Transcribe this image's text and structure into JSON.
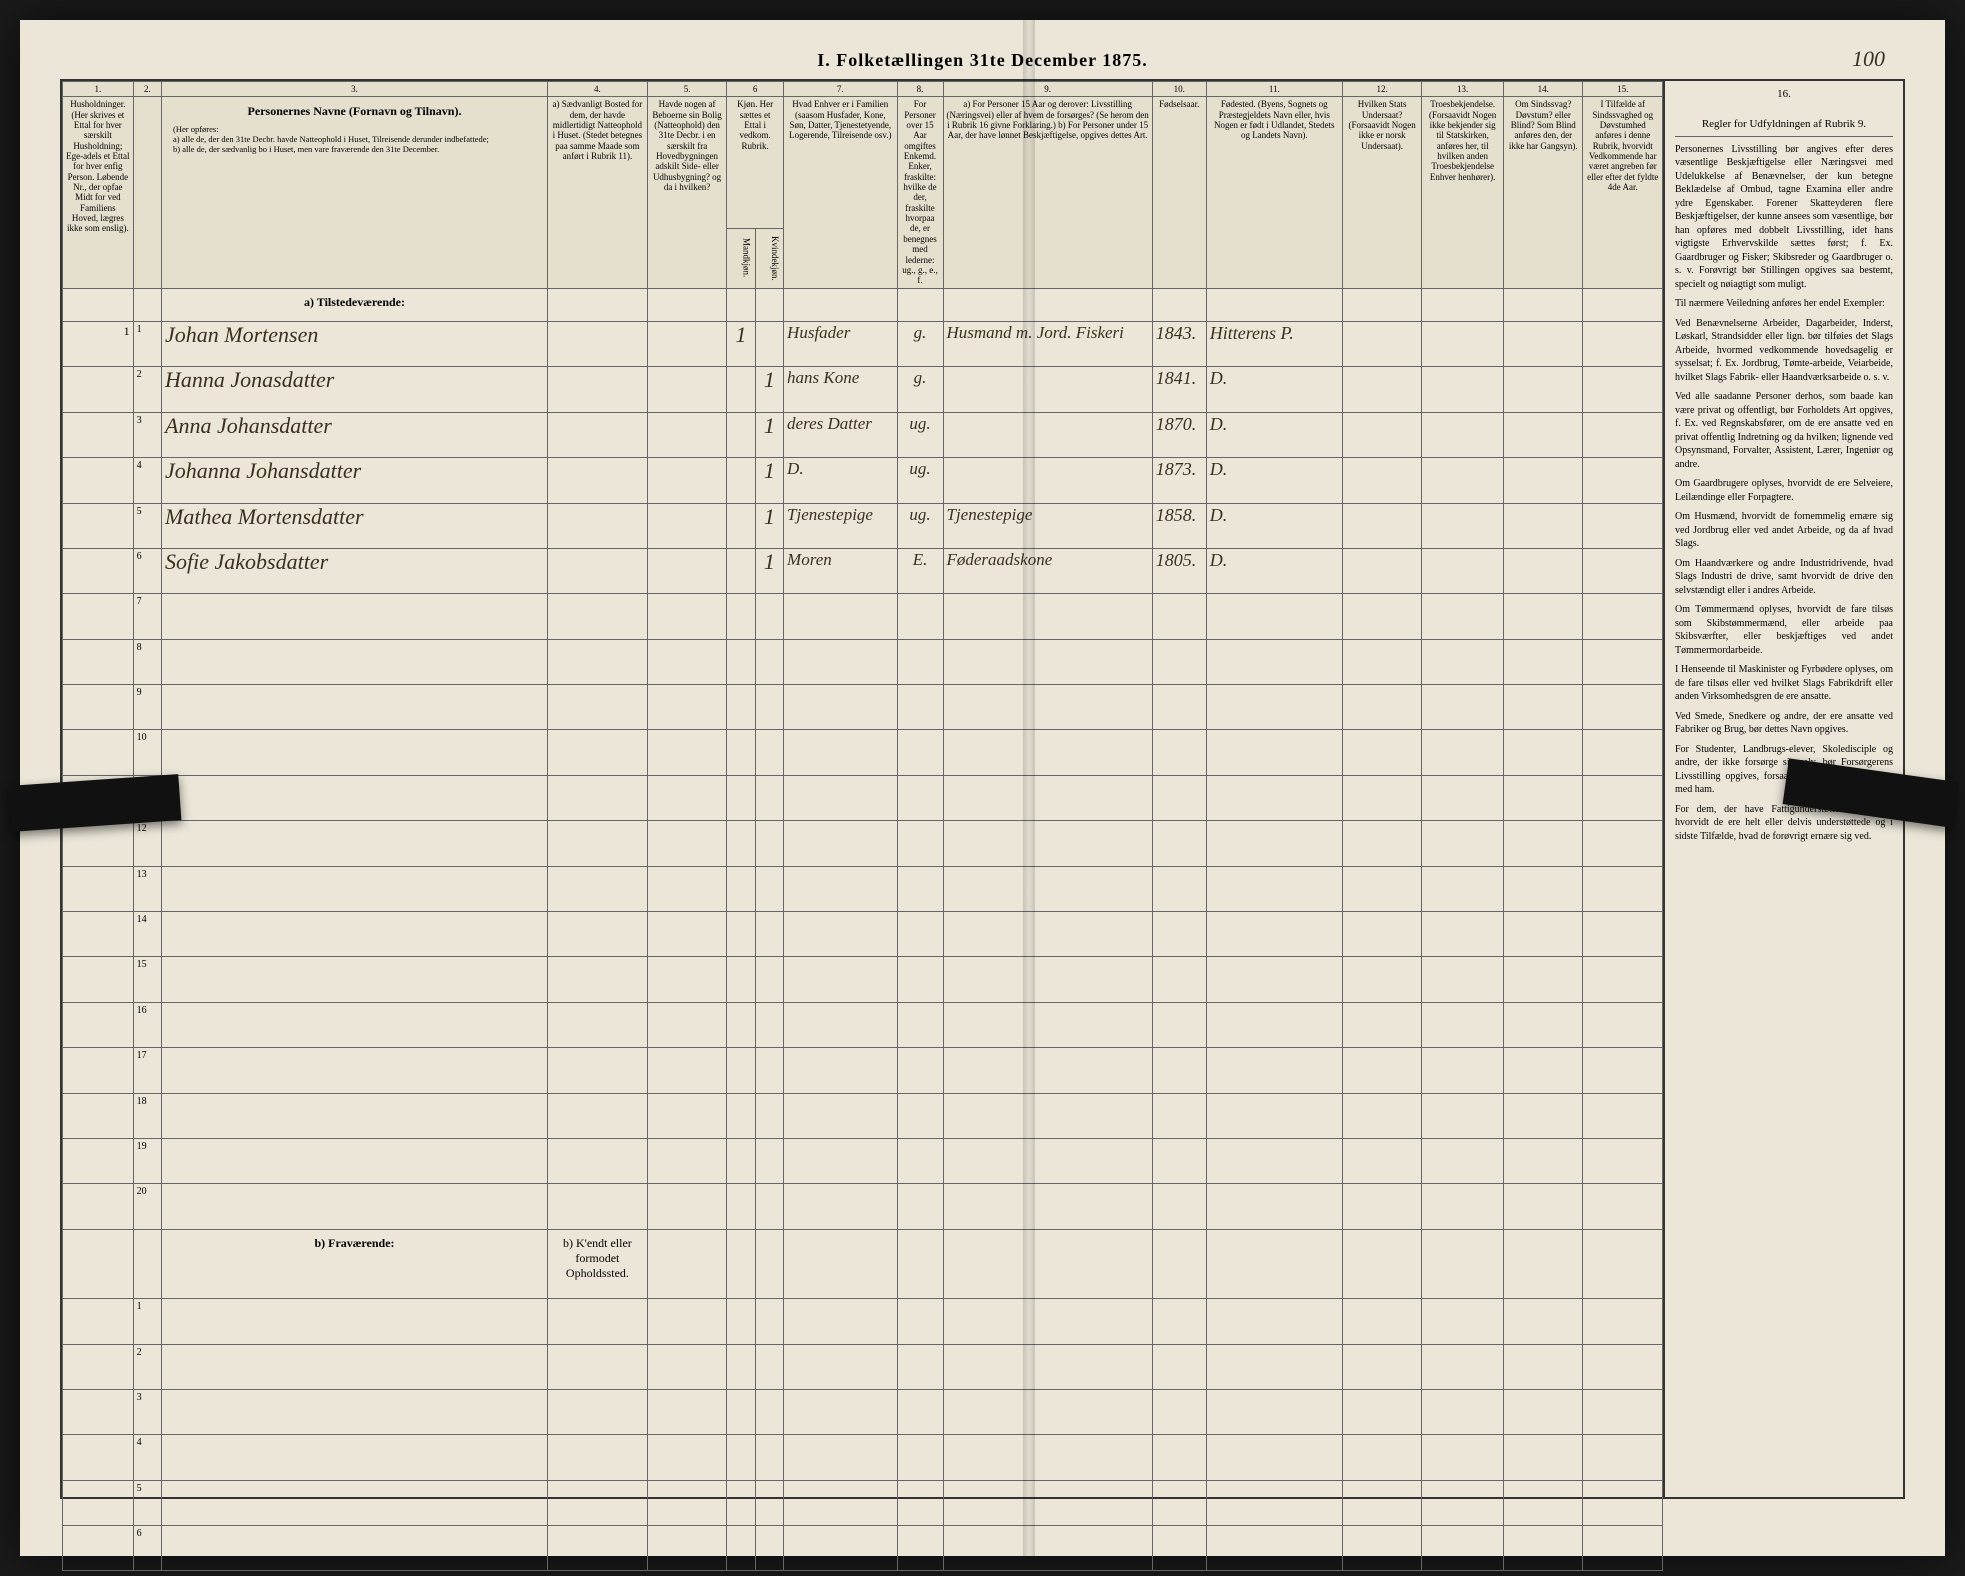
{
  "title": "I.  Folketællingen 31te December 1875.",
  "page_number": "100",
  "headers": {
    "nums": [
      "1.",
      "2.",
      "3.",
      "4.",
      "5.",
      "6",
      "7.",
      "8.",
      "9.",
      "10.",
      "11.",
      "12.",
      "13.",
      "14.",
      "15.",
      "16."
    ],
    "h1": "Husholdninger.\n(Her skrives et Ettal for hver særskilt Husholdning; Ege-adels et Ettal for hver enfig Person.\nLøbende Nr., der opfae Midt for ved Familiens Hoved, lægres ikke som enslig).",
    "h2": "",
    "h3_title": "Personernes Navne  (Fornavn og Tilnavn).",
    "h3_body": "(Her opføres:\na) alle de, der den 31te Decbr. havde Natteophold i Huset, Tilreisende derunder indbefattede;\nb) alle de, der sædvanlig bo i Huset, men vare fraværende den 31te December.",
    "h4": "a) Sædvanligt Bosted for dem, der havde midlertidigt Natteophold i Huset. (Stedet betegnes paa samme Maade som anført i Rubrik 11).",
    "h5": "Havde nogen af Beboerne sin Bolig (Natteophold) den 31te Decbr. i en særskilt fra Hovedbygningen adskilt Side- eller Udhusbygning? og da i hvilken?",
    "h6": "Kjøn. Her sættes et Ettal i vedkom. Rubrik.",
    "h6a": "Mandkjøn.",
    "h6b": "Kvindekjøn.",
    "h7": "Hvad Enhver er i Familien (saasom Husfader, Kone, Søn, Datter, Tjenestetyende, Logerende, Tilreisende osv.)",
    "h8": "For Personer over 15 Aar omgiftes Enkemd. Enker, fraskilte: hvilke de der, fraskilte hvorpaa de, er benegnes med lederne: ug., g., e., f.",
    "h9": "a) For Personer 15 Aar og derover: Livsstilling (Næringsvei) eller af hvem de forsørges? (Se herom den i Rubrik 16 givne Forklaring.)\nb) For Personer under 15 Aar, der have lønnet Beskjæftigelse, opgives dettes Art.",
    "h10": "Fødselsaar.",
    "h11": "Fødested.\n(Byens, Sognets og Præstegjeldets Navn eller, hvis Nogen er født i Udlandet, Stedets og Landets Navn).",
    "h12": "Hvilken Stats Undersaat?\n(Forsaavidt Nogen ikke er norsk Undersaat).",
    "h13": "Troesbekjendelse.\n(Forsaavidt Nogen ikke bekjender sig til Statskirken, anføres her, til hvilken anden Troesbekjendelse Enhver henhører).",
    "h14": "Om Sindssvag?\nDøvstum?\neller Blind?\nSom Blind anføres den, der ikke har Gangsyn).",
    "h15": "I Tilfælde af Sindssvaghed og Døvstumhed anføres i denne Rubrik, hvorvidt Vedkommende har været angreben før eller efter det fyldte 4de Aar.",
    "h16_title": "Regler for Udfyldningen af Rubrik 9.",
    "h4b": "b) K'endt eller formodet Opholdssted."
  },
  "section_a": "a)  Tilstedeværende:",
  "section_b": "b)  Fraværende:",
  "rows": [
    {
      "n": "1",
      "name": "Johan Mortensen",
      "c5": "",
      "m": "1",
      "f": "",
      "rel": "Husfader",
      "ms": "g.",
      "occ": "Husmand m. Jord. Fiskeri",
      "yr": "1843.",
      "place": "Hitterens P."
    },
    {
      "n": "2",
      "name": "Hanna Jonasdatter",
      "c5": "",
      "m": "",
      "f": "1",
      "rel": "hans Kone",
      "ms": "g.",
      "occ": "",
      "yr": "1841.",
      "place": "D."
    },
    {
      "n": "3",
      "name": "Anna Johansdatter",
      "c5": "",
      "m": "",
      "f": "1",
      "rel": "deres Datter",
      "ms": "ug.",
      "occ": "",
      "yr": "1870.",
      "place": "D."
    },
    {
      "n": "4",
      "name": "Johanna Johansdatter",
      "c5": "",
      "m": "",
      "f": "1",
      "rel": "D.",
      "ms": "ug.",
      "occ": "",
      "yr": "1873.",
      "place": "D."
    },
    {
      "n": "5",
      "name": "Mathea Mortensdatter",
      "c5": "",
      "m": "",
      "f": "1",
      "rel": "Tjenestepige",
      "ms": "ug.",
      "occ": "Tjenestepige",
      "yr": "1858.",
      "place": "D."
    },
    {
      "n": "6",
      "name": "Sofie Jakobsdatter",
      "c5": "",
      "m": "",
      "f": "1",
      "rel": "Moren",
      "ms": "E.",
      "occ": "Føderaadskone",
      "yr": "1805.",
      "place": "D."
    }
  ],
  "empty_a": [
    "7",
    "8",
    "9",
    "10",
    "11",
    "12",
    "13",
    "14",
    "15",
    "16",
    "17",
    "18",
    "19",
    "20"
  ],
  "empty_b": [
    "1",
    "2",
    "3",
    "4",
    "5",
    "6"
  ],
  "side_text": [
    "Personernes Livsstilling bør angives efter deres væsentlige Beskjæftigelse eller Næringsvei med Udelukkelse af Benævnelser, der kun betegne Beklædelse af Ombud, tagne Examina eller andre ydre Egenskaber. Forener Skatteyderen flere Beskjæftigelser, der kunne ansees som væsentlige, bør han opføres med dobbelt Livsstilling, idet hans vigtigste Erhvervskilde sættes først; f. Ex. Gaardbruger og Fisker; Skibsreder og Gaardbruger o. s. v. Forøvrigt bør Stillingen opgives saa bestemt, specielt og nøiagtigt som muligt.",
    "Til nærmere Veiledning anføres her endel Exempler:",
    "Ved Benævnelserne Arbeider, Dagarbeider, Inderst, Løskarl, Strandsidder eller lign. bør tilføies det Slags Arbeide, hvormed vedkommende hovedsagelig er sysselsat; f. Ex. Jordbrug, Tømte-arbeide, Veiarbeide, hvilket Slags Fabrik- eller Haandværksarbeide o. s. v.",
    "Ved alle saadanne Personer derhos, som baade kan være privat og offentligt, bør Forholdets Art opgives, f. Ex. ved Regnskabsfører, om de ere ansatte ved en privat offentlig Indretning og da hvilken; lignende ved Opsynsmand, Forvalter, Assistent, Lærer, Ingeniør og andre.",
    "Om Gaardbrugere oplyses, hvorvidt de ere Selveiere, Leilændinge eller Forpagtere.",
    "Om Husmænd, hvorvidt de fornemmelig ernære sig ved Jordbrug eller ved andet Arbeide, og da af hvad Slags.",
    "Om Haandværkere og andre Industridrivende, hvad Slags Industri de drive, samt hvorvidt de drive den selvstændigt eller i andres Arbeide.",
    "Om Tømmermænd oplyses, hvorvidt de fare tilsøs som Skibstømmermænd, eller arbeide paa Skibsværfter, eller beskjæftiges ved andet Tømmermordarbeide.",
    "I Henseende til Maskinister og Fyrbødere oplyses, om de fare tilsøs eller ved hvilket Slags Fabrikdrift eller anden Virksomhedsgren de ere ansatte.",
    "Ved Smede, Snedkere og andre, der ere ansatte ved Fabriker og Brug, bør dettes Navn opgives.",
    "For Studenter, Landbrugs-elever, Skoledisciple og andre, der ikke forsørge sig selv, bør Forsørgerens Livsstilling opgives, forsaavidt de ikke bo sammen med ham.",
    "For dem, der have Fattigunderstøttelse, oplyses, hvorvidt de ere helt eller delvis understøttede og i sidste Tilfælde, hvad de forøvrigt ernære sig ved."
  ]
}
